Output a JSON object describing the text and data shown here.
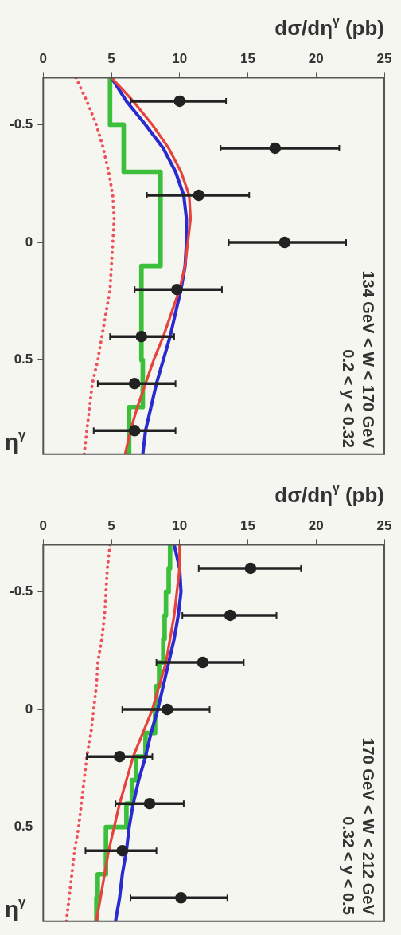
{
  "chart_data": [
    {
      "type": "scatter",
      "xlabel": "dσ/dη$^{γ}$ (pb)",
      "ylabel": "η$^{γ}$",
      "annotations": [
        "134 GeV < W < 170 GeV",
        "0.2 < y < 0.32"
      ],
      "xlim": [
        0,
        25
      ],
      "xticks": [
        0,
        5,
        10,
        15,
        20,
        25
      ],
      "ylim": [
        0.9,
        -0.7
      ],
      "yticks": [
        -0.5,
        0,
        0.5
      ],
      "grid": false,
      "legend": false,
      "series": [
        {
          "type": "scatter",
          "marker": "circle",
          "color": "#222222",
          "values": [
            -0.6,
            -0.4,
            -0.2,
            0,
            0.2,
            0.4,
            0.6,
            0.8
          ],
          "x": [
            10,
            17,
            11.4,
            17.7,
            9.8,
            7.2,
            6.7,
            6.7
          ],
          "xerrors": [
            [
              6.4,
              13.4
            ],
            [
              13,
              21.7
            ],
            [
              7.6,
              15.1
            ],
            [
              13.6,
              22.2
            ],
            [
              6.7,
              13.1
            ],
            [
              4.9,
              9.6
            ],
            [
              4,
              9.7
            ],
            [
              3.7,
              9.7
            ]
          ]
        },
        {
          "type": "line",
          "color": "#e8423c",
          "line_style": "solid",
          "values": [
            -0.7,
            -0.6,
            -0.5,
            -0.4,
            -0.3,
            -0.2,
            -0.1,
            0,
            0.1,
            0.2,
            0.3,
            0.4,
            0.5,
            0.6,
            0.7,
            0.8,
            0.9
          ],
          "x": [
            5.0,
            6.6,
            8.0,
            9.2,
            10.1,
            10.7,
            10.8,
            10.6,
            10.4,
            10.0,
            9.4,
            8.8,
            8.1,
            7.5,
            6.9,
            6.4,
            6.0
          ]
        },
        {
          "type": "line",
          "color": "#2a2ad0",
          "line_style": "solid",
          "values": [
            -0.7,
            -0.6,
            -0.5,
            -0.4,
            -0.3,
            -0.2,
            -0.1,
            0,
            0.1,
            0.2,
            0.3,
            0.4,
            0.5,
            0.6,
            0.7,
            0.8,
            0.9
          ],
          "x": [
            5.0,
            6.1,
            7.5,
            8.8,
            9.7,
            10.3,
            10.5,
            10.5,
            10.4,
            10.1,
            9.7,
            9.3,
            8.8,
            8.3,
            7.9,
            7.5,
            7.3
          ]
        },
        {
          "type": "line",
          "color": "#f0505a",
          "line_style": "dotted",
          "values": [
            -0.7,
            -0.6,
            -0.5,
            -0.4,
            -0.3,
            -0.2,
            -0.1,
            0,
            0.1,
            0.2,
            0.3,
            0.4,
            0.5,
            0.6,
            0.7,
            0.8,
            0.9
          ],
          "x": [
            2.4,
            3.2,
            3.9,
            4.4,
            4.8,
            5.1,
            5.2,
            5.1,
            5.0,
            4.9,
            4.6,
            4.3,
            4.0,
            3.6,
            3.4,
            3.2,
            3.0
          ]
        },
        {
          "type": "step",
          "color": "#3cc03c",
          "line_style": "solid",
          "values": [
            -0.7,
            -0.5,
            -0.3,
            0.1,
            0.5,
            0.7,
            0.9
          ],
          "x": [
            4.9,
            5.9,
            8.6,
            7.2,
            7.3,
            6.3,
            6.3
          ]
        }
      ]
    },
    {
      "type": "scatter",
      "xlabel": "dσ/dη$^{γ}$ (pb)",
      "ylabel": "η$^{γ}$",
      "annotations": [
        "170 GeV < W < 212 GeV",
        "0.32 < y < 0.5"
      ],
      "xlim": [
        0,
        25
      ],
      "xticks": [
        0,
        5,
        10,
        15,
        20,
        25
      ],
      "ylim": [
        0.9,
        -0.7
      ],
      "yticks": [
        -0.5,
        0,
        0.5
      ],
      "grid": false,
      "legend": false,
      "series": [
        {
          "type": "scatter",
          "marker": "circle",
          "color": "#222222",
          "values": [
            -0.6,
            -0.4,
            -0.2,
            0,
            0.2,
            0.4,
            0.6,
            0.8
          ],
          "x": [
            15.2,
            13.7,
            11.7,
            9.1,
            5.6,
            7.8,
            5.8,
            10.1
          ],
          "xerrors": [
            [
              11.4,
              18.9
            ],
            [
              10.2,
              17.1
            ],
            [
              8.3,
              14.7
            ],
            [
              5.8,
              12.2
            ],
            [
              3.2,
              8.0
            ],
            [
              5.3,
              10.3
            ],
            [
              3.1,
              8.3
            ],
            [
              6.4,
              13.5
            ]
          ]
        },
        {
          "type": "line",
          "color": "#e8423c",
          "line_style": "solid",
          "values": [
            -0.7,
            -0.6,
            -0.5,
            -0.4,
            -0.3,
            -0.2,
            -0.1,
            0,
            0.1,
            0.2,
            0.3,
            0.4,
            0.5,
            0.6,
            0.7,
            0.8,
            0.9
          ],
          "x": [
            10.0,
            10.0,
            9.8,
            9.6,
            9.3,
            9.0,
            8.5,
            8.0,
            7.3,
            6.6,
            6.1,
            5.6,
            5.2,
            4.8,
            4.5,
            4.2,
            3.9
          ]
        },
        {
          "type": "line",
          "color": "#2a2ad0",
          "line_style": "solid",
          "values": [
            -0.7,
            -0.6,
            -0.5,
            -0.4,
            -0.3,
            -0.2,
            -0.1,
            0,
            0.1,
            0.2,
            0.3,
            0.4,
            0.5,
            0.6,
            0.7,
            0.8,
            0.9
          ],
          "x": [
            9.6,
            10.0,
            10.1,
            9.9,
            9.6,
            9.2,
            8.8,
            8.4,
            7.9,
            7.5,
            7.0,
            6.6,
            6.3,
            6.1,
            5.8,
            5.6,
            5.3
          ]
        },
        {
          "type": "line",
          "color": "#f0505a",
          "line_style": "dotted",
          "values": [
            -0.7,
            -0.6,
            -0.5,
            -0.4,
            -0.3,
            -0.2,
            -0.1,
            0,
            0.1,
            0.2,
            0.3,
            0.4,
            0.5,
            0.6,
            0.7,
            0.8,
            0.9
          ],
          "x": [
            4.9,
            4.7,
            4.6,
            4.5,
            4.3,
            4.0,
            3.9,
            3.7,
            3.5,
            3.2,
            3.0,
            2.8,
            2.6,
            2.3,
            2.1,
            1.9,
            1.7
          ]
        },
        {
          "type": "step",
          "color": "#3cc03c",
          "line_style": "solid",
          "values": [
            -0.7,
            -0.6,
            -0.5,
            -0.4,
            -0.3,
            -0.2,
            -0.1,
            0,
            0.1,
            0.2,
            0.3,
            0.4,
            0.5,
            0.6,
            0.7,
            0.8,
            0.9
          ],
          "x": [
            9.3,
            9.2,
            9.0,
            8.9,
            8.8,
            8.5,
            8.3,
            8.2,
            7.5,
            6.8,
            6.5,
            6.1,
            4.6,
            4.6,
            4.0,
            3.9,
            3.9
          ]
        }
      ]
    }
  ]
}
